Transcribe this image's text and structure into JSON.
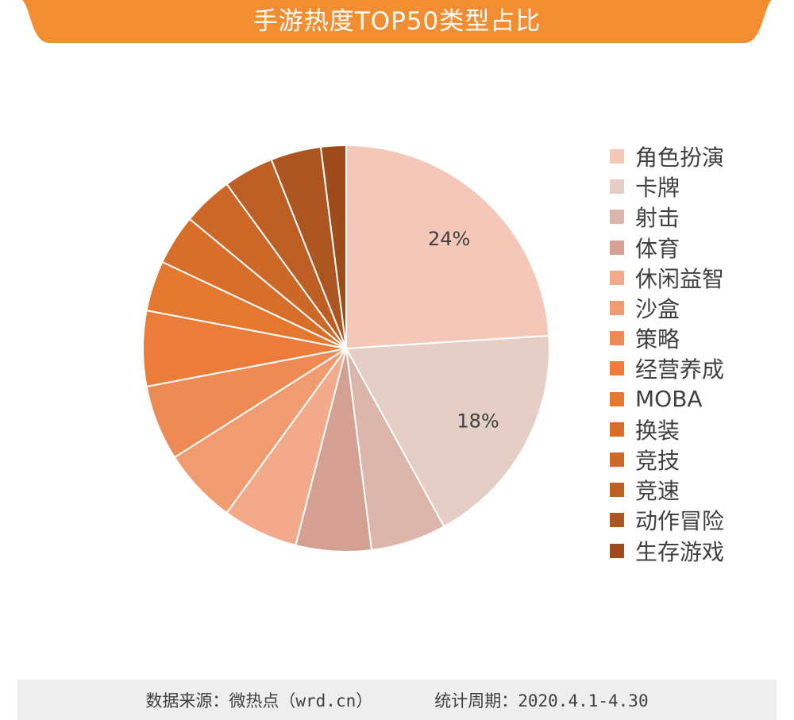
{
  "colors": {
    "title_bg": "#f28d31",
    "footer_bg": "#eeeeee",
    "text": "#404040"
  },
  "chart_data": {
    "type": "pie",
    "title": "手游热度TOP50类型占比",
    "categories": [
      "角色扮演",
      "卡牌",
      "射击",
      "体育",
      "休闲益智",
      "沙盒",
      "策略",
      "经营养成",
      "MOBA",
      "换装",
      "竞技",
      "竞速",
      "动作冒险",
      "生存游戏"
    ],
    "values": [
      24,
      18,
      6,
      6,
      6,
      6,
      6,
      6,
      4,
      4,
      4,
      4,
      4,
      2
    ],
    "data_labels": [
      "24%",
      "18%",
      "",
      "",
      "",
      "",
      "",
      "",
      "",
      "",
      "",
      "",
      "",
      ""
    ],
    "colors": [
      "#f5c7b8",
      "#e5cec5",
      "#dcb6aa",
      "#d4a092",
      "#f2aa8a",
      "#f09b70",
      "#ee8b55",
      "#eb7c3a",
      "#e5782f",
      "#d76e2a",
      "#cc6828",
      "#bd5f24",
      "#ad5520",
      "#9f4c1c"
    ],
    "legend_position": "right",
    "start_angle_deg": 0,
    "direction": "clockwise"
  },
  "footer": {
    "source": "数据来源：微热点（wrd.cn）",
    "period": "统计周期：2020.4.1-4.30"
  }
}
